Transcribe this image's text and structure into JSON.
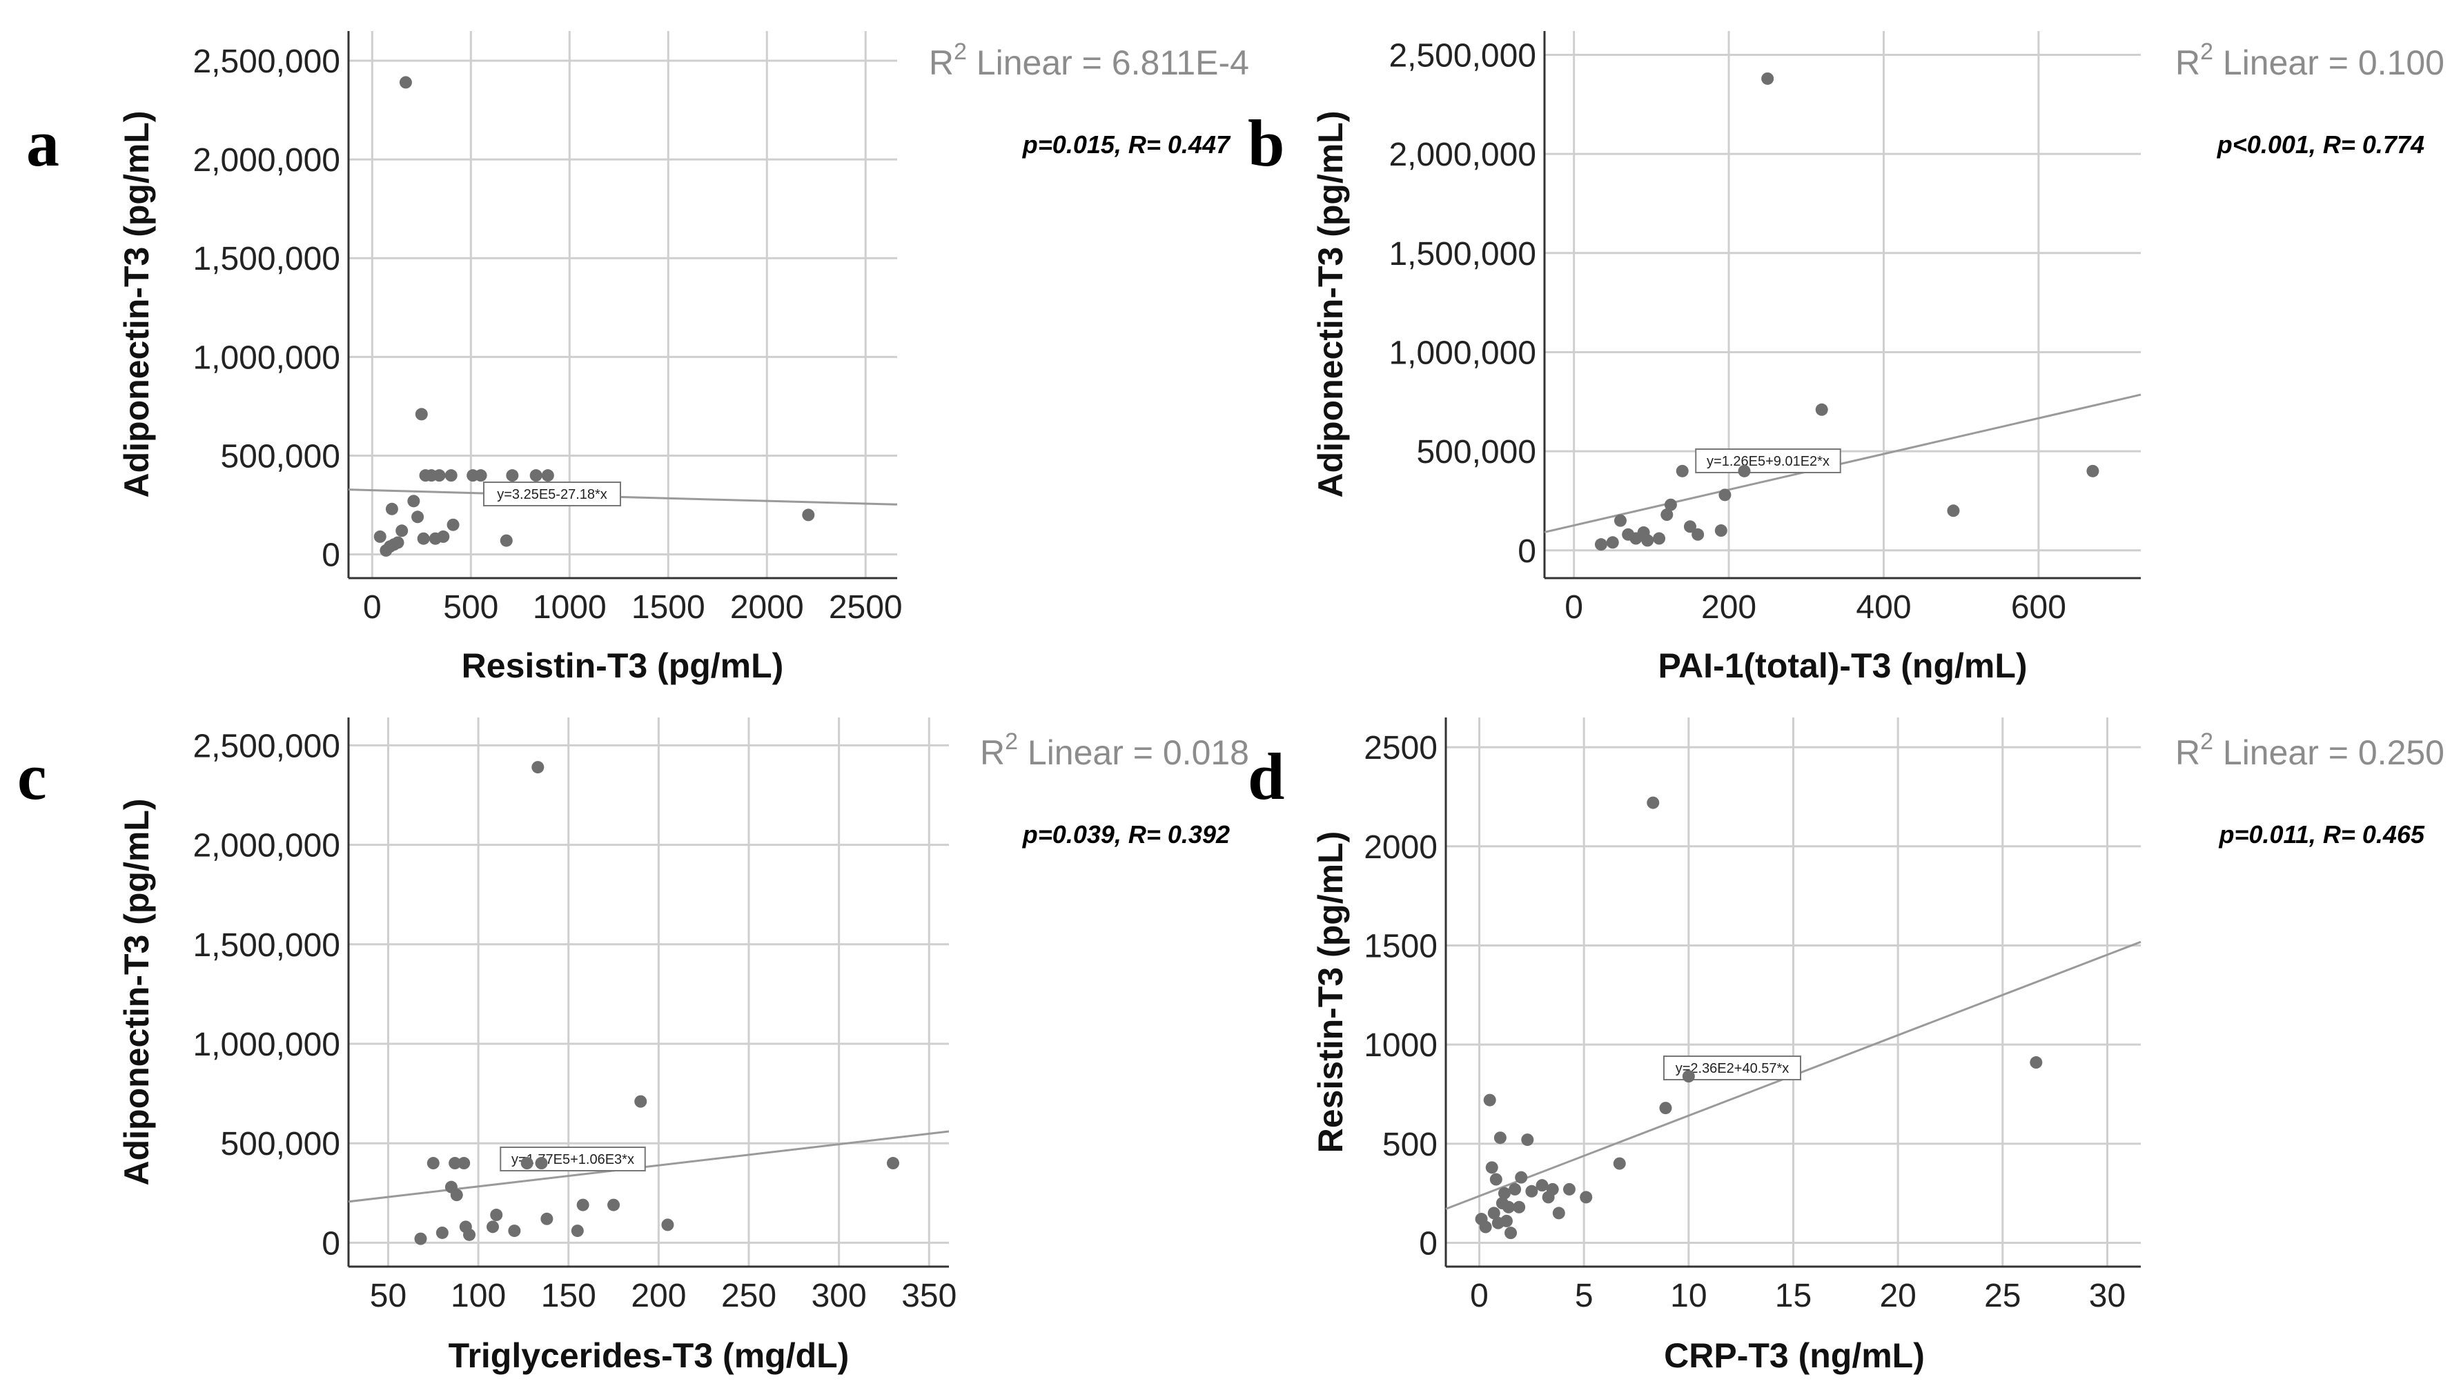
{
  "chart_data": [
    {
      "type": "scatter",
      "panel": "a",
      "xlabel": "Resistin-T3 (pg/mL)",
      "ylabel": "Adiponectin-T3 (pg/mL)",
      "xlim": [
        -120,
        2660
      ],
      "ylim": [
        -120000,
        2650000
      ],
      "xticks": [
        0,
        500,
        1000,
        1500,
        2000,
        2500
      ],
      "xtick_labels": [
        "0",
        "500",
        "1000",
        "1500",
        "2000",
        "2500"
      ],
      "yticks": [
        0,
        500000,
        1000000,
        1500000,
        2000000,
        2500000
      ],
      "ytick_labels": [
        "0",
        "500,000",
        "1,000,000",
        "1,500,000",
        "2,000,000",
        "2,500,000"
      ],
      "r2_prefix": "R",
      "r2_sup": "2",
      "r2_label": "Linear = 6.811E-4",
      "stat": "p=0.015, R= 0.447",
      "equation": "y=3.25E5-27.18*x",
      "fit": {
        "intercept": 325000,
        "slope": -27.18
      },
      "points": [
        [
          40,
          90000
        ],
        [
          70,
          20000
        ],
        [
          90,
          40000
        ],
        [
          100,
          230000
        ],
        [
          110,
          50000
        ],
        [
          130,
          60000
        ],
        [
          150,
          120000
        ],
        [
          170,
          2390000
        ],
        [
          210,
          270000
        ],
        [
          230,
          190000
        ],
        [
          250,
          710000
        ],
        [
          260,
          80000
        ],
        [
          270,
          400000
        ],
        [
          300,
          400000
        ],
        [
          320,
          80000
        ],
        [
          340,
          400000
        ],
        [
          360,
          90000
        ],
        [
          400,
          400000
        ],
        [
          410,
          150000
        ],
        [
          510,
          400000
        ],
        [
          550,
          400000
        ],
        [
          680,
          70000
        ],
        [
          710,
          400000
        ],
        [
          830,
          400000
        ],
        [
          890,
          400000
        ],
        [
          2210,
          200000
        ]
      ]
    },
    {
      "type": "scatter",
      "panel": "b",
      "xlabel": "PAI-1(total)-T3 (ng/mL)",
      "ylabel": "Adiponectin-T3 (pg/mL)",
      "xlim": [
        -38,
        732
      ],
      "ylim": [
        -140000,
        2620000
      ],
      "xticks": [
        0,
        200,
        400,
        600
      ],
      "xtick_labels": [
        "0",
        "200",
        "400",
        "600"
      ],
      "yticks": [
        0,
        500000,
        1000000,
        1500000,
        2000000,
        2500000
      ],
      "ytick_labels": [
        "0",
        "500,000",
        "1,000,000",
        "1,500,000",
        "2,000,000",
        "2,500,000"
      ],
      "r2_prefix": "R",
      "r2_sup": "2",
      "r2_label": "Linear = 0.100",
      "stat": "p<0.001, R= 0.774",
      "equation": "y=1.26E5+9.01E2*x",
      "fit": {
        "intercept": 126000,
        "slope": 901
      },
      "points": [
        [
          35,
          30000
        ],
        [
          50,
          40000
        ],
        [
          60,
          150000
        ],
        [
          70,
          80000
        ],
        [
          80,
          60000
        ],
        [
          90,
          90000
        ],
        [
          95,
          50000
        ],
        [
          110,
          60000
        ],
        [
          120,
          180000
        ],
        [
          125,
          230000
        ],
        [
          140,
          400000
        ],
        [
          150,
          120000
        ],
        [
          160,
          80000
        ],
        [
          190,
          100000
        ],
        [
          195,
          280000
        ],
        [
          220,
          400000
        ],
        [
          250,
          2380000
        ],
        [
          320,
          710000
        ],
        [
          490,
          200000
        ],
        [
          670,
          400000
        ]
      ]
    },
    {
      "type": "scatter",
      "panel": "c",
      "xlabel": "Triglycerides-T3 (mg/dL)",
      "ylabel": "Adiponectin-T3 (pg/mL)",
      "xlim": [
        28,
        361
      ],
      "ylim": [
        -120000,
        2640000
      ],
      "xticks": [
        50,
        100,
        150,
        200,
        250,
        300,
        350
      ],
      "xtick_labels": [
        "50",
        "100",
        "150",
        "200",
        "250",
        "300",
        "350"
      ],
      "yticks": [
        0,
        500000,
        1000000,
        1500000,
        2000000,
        2500000
      ],
      "ytick_labels": [
        "0",
        "500,000",
        "1,000,000",
        "1,500,000",
        "2,000,000",
        "2,500,000"
      ],
      "r2_prefix": "R",
      "r2_sup": "2",
      "r2_label": "Linear = 0.018",
      "stat": "p=0.039, R= 0.392",
      "equation": "y=1.77E5+1.06E3*x",
      "fit": {
        "intercept": 177000,
        "slope": 1060
      },
      "points": [
        [
          68,
          20000
        ],
        [
          75,
          400000
        ],
        [
          80,
          50000
        ],
        [
          85,
          280000
        ],
        [
          87,
          400000
        ],
        [
          88,
          240000
        ],
        [
          92,
          400000
        ],
        [
          93,
          80000
        ],
        [
          95,
          40000
        ],
        [
          108,
          80000
        ],
        [
          110,
          140000
        ],
        [
          120,
          60000
        ],
        [
          127,
          400000
        ],
        [
          133,
          2390000
        ],
        [
          135,
          400000
        ],
        [
          138,
          120000
        ],
        [
          155,
          60000
        ],
        [
          158,
          190000
        ],
        [
          175,
          190000
        ],
        [
          190,
          710000
        ],
        [
          205,
          90000
        ],
        [
          330,
          400000
        ]
      ]
    },
    {
      "type": "scatter",
      "panel": "d",
      "xlabel": "CRP-T3 (ng/mL)",
      "ylabel": "Resistin-T3 (pg/mL)",
      "xlim": [
        -1.6,
        31.6
      ],
      "ylim": [
        -120,
        2650
      ],
      "xticks": [
        0,
        5,
        10,
        15,
        20,
        25,
        30
      ],
      "xtick_labels": [
        "0",
        "5",
        "10",
        "15",
        "20",
        "25",
        "30"
      ],
      "yticks": [
        0,
        500,
        1000,
        1500,
        2000,
        2500
      ],
      "ytick_labels": [
        "0",
        "500",
        "1000",
        "1500",
        "2000",
        "2500"
      ],
      "r2_prefix": "R",
      "r2_sup": "2",
      "r2_label": "Linear = 0.250",
      "stat": "p=0.011, R= 0.465",
      "equation": "y=2.36E2+40.57*x",
      "fit": {
        "intercept": 236,
        "slope": 40.57
      },
      "points": [
        [
          0.1,
          120
        ],
        [
          0.3,
          80
        ],
        [
          0.5,
          720
        ],
        [
          0.6,
          380
        ],
        [
          0.7,
          150
        ],
        [
          0.8,
          320
        ],
        [
          0.9,
          100
        ],
        [
          1.0,
          530
        ],
        [
          1.1,
          200
        ],
        [
          1.2,
          250
        ],
        [
          1.3,
          110
        ],
        [
          1.4,
          180
        ],
        [
          1.5,
          50
        ],
        [
          1.7,
          270
        ],
        [
          1.9,
          180
        ],
        [
          2.0,
          330
        ],
        [
          2.3,
          520
        ],
        [
          2.5,
          260
        ],
        [
          3.0,
          290
        ],
        [
          3.3,
          230
        ],
        [
          3.5,
          270
        ],
        [
          3.8,
          150
        ],
        [
          4.3,
          270
        ],
        [
          5.1,
          230
        ],
        [
          6.7,
          400
        ],
        [
          8.3,
          2220
        ],
        [
          8.9,
          680
        ],
        [
          10.0,
          840
        ],
        [
          26.6,
          910
        ]
      ]
    }
  ]
}
